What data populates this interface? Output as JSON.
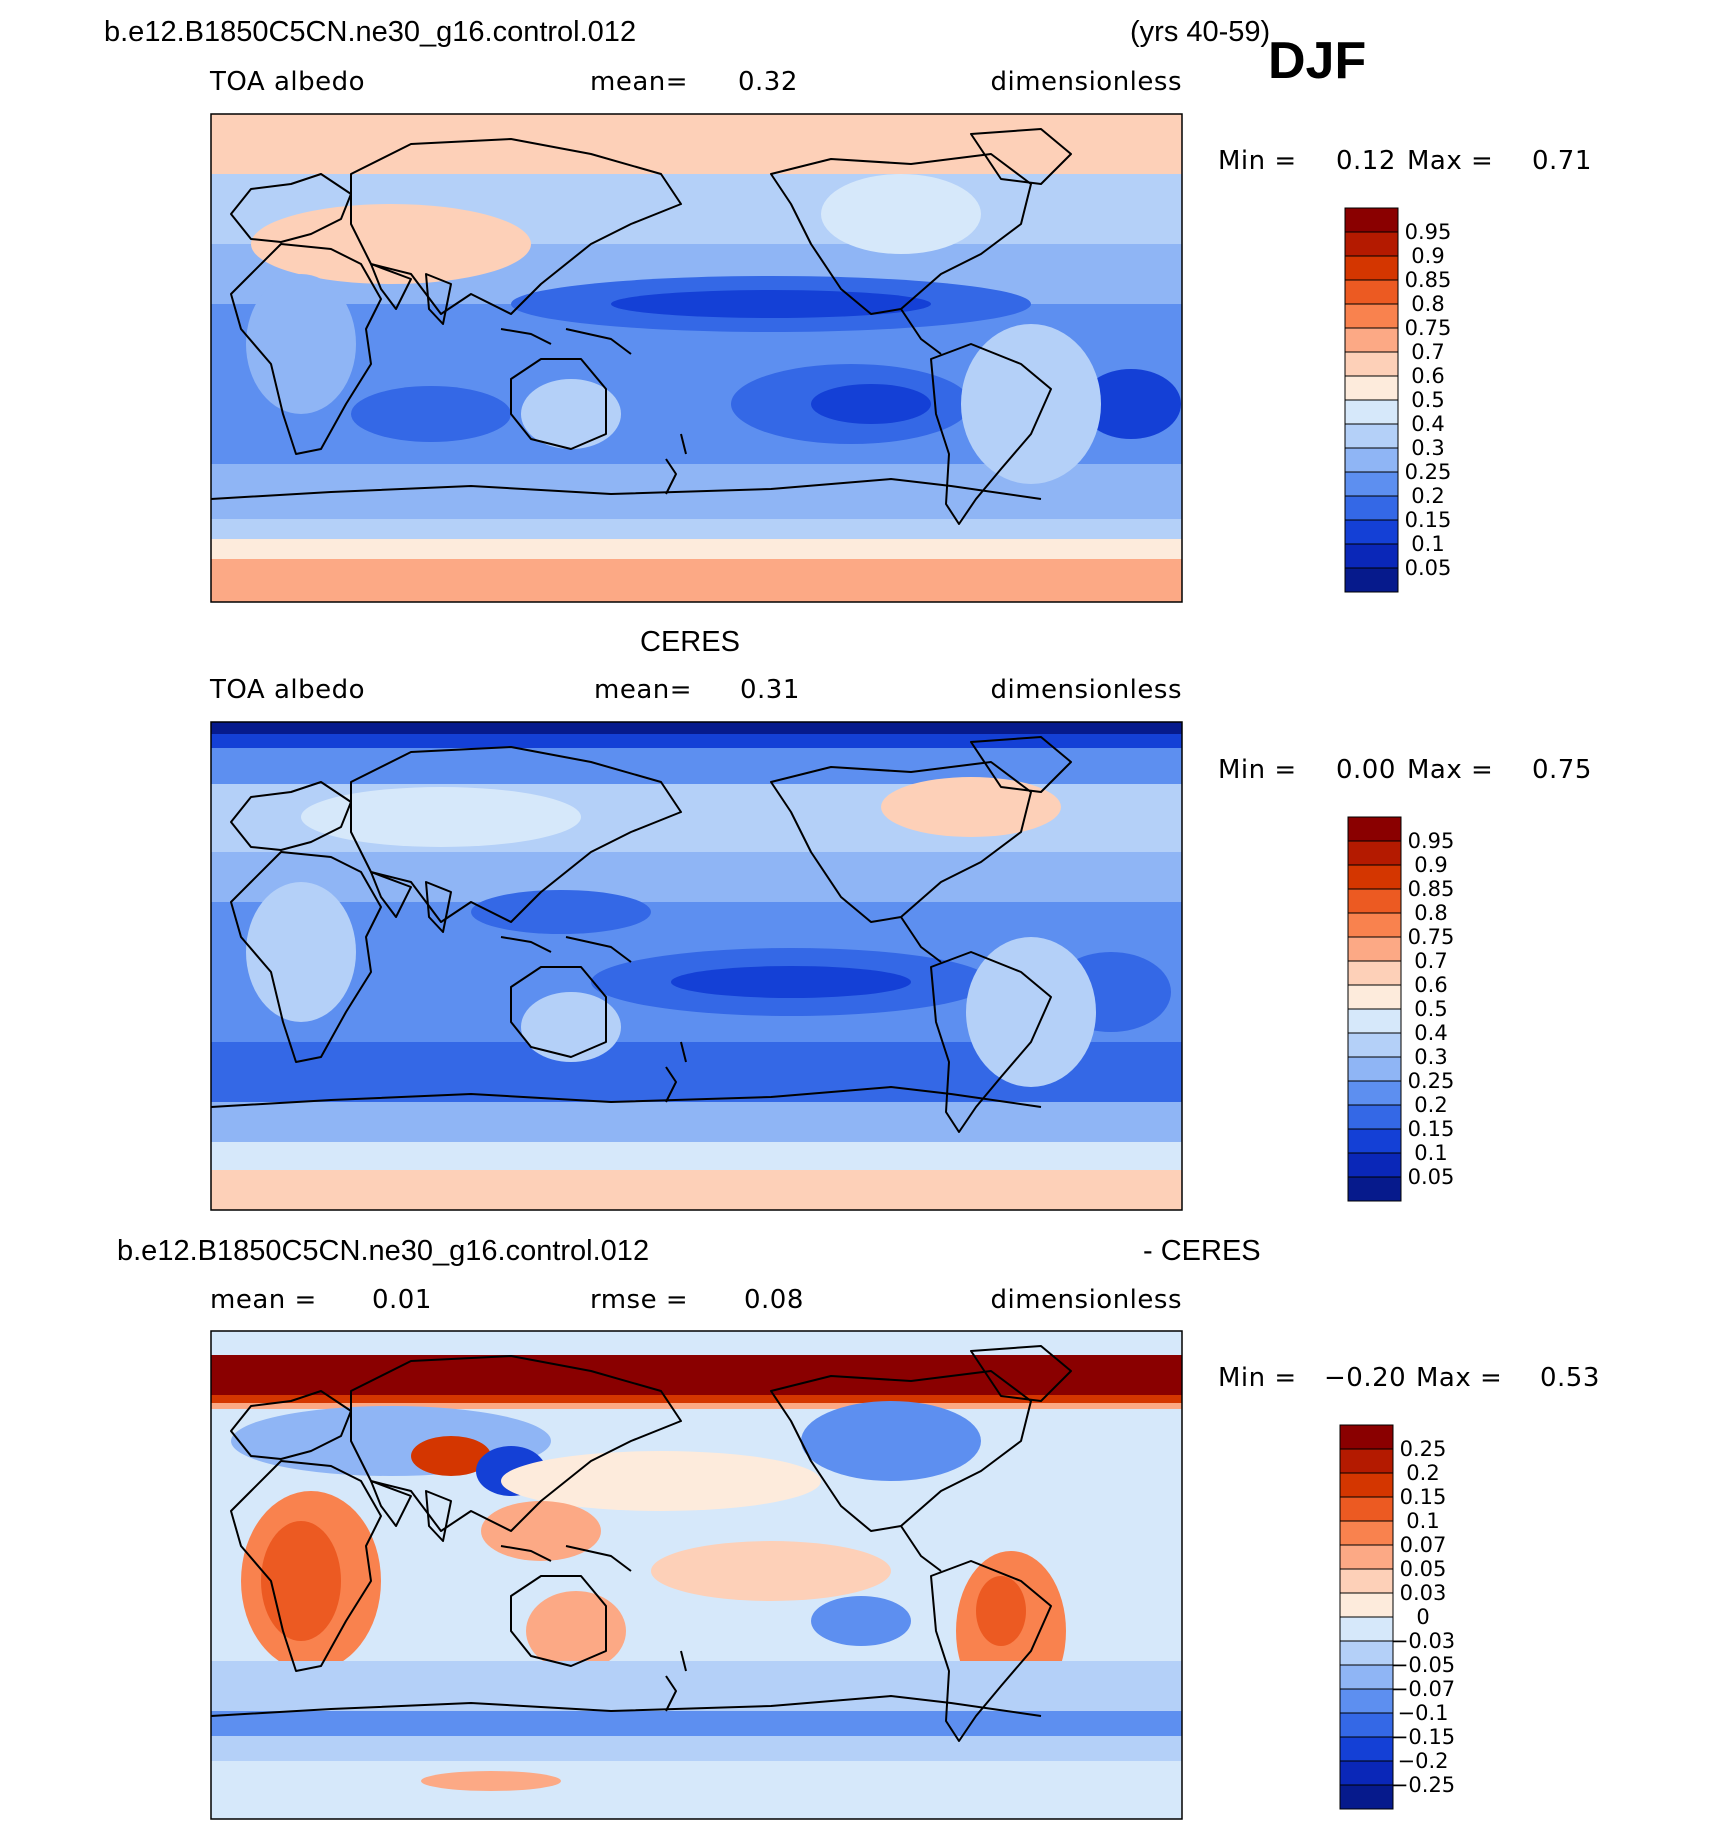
{
  "season": "DJF",
  "panels": [
    {
      "id": "model",
      "title": "b.e12.B1850C5CN.ne30_g16.control.012",
      "title_right": "(yrs 40-59)",
      "left_label": "TOA  albedo",
      "mid_label": "mean=",
      "mid_value": "0.32",
      "units": "dimensionless",
      "min_label": "Min  =",
      "min_value": "0.12",
      "max_label": "Max  =",
      "max_value": "0.71",
      "colorbar": [
        "0.95",
        "0.9",
        "0.85",
        "0.8",
        "0.75",
        "0.7",
        "0.6",
        "0.5",
        "0.4",
        "0.3",
        "0.25",
        "0.2",
        "0.15",
        "0.1",
        "0.05"
      ]
    },
    {
      "id": "obs",
      "title": "CERES",
      "left_label": "TOA  albedo",
      "mid_label": "mean=",
      "mid_value": "0.31",
      "units": "dimensionless",
      "min_label": "Min  =",
      "min_value": "0.00",
      "max_label": "Max  =",
      "max_value": "0.75",
      "colorbar": [
        "0.95",
        "0.9",
        "0.85",
        "0.8",
        "0.75",
        "0.7",
        "0.6",
        "0.5",
        "0.4",
        "0.3",
        "0.25",
        "0.2",
        "0.15",
        "0.1",
        "0.05"
      ]
    },
    {
      "id": "diff",
      "title": "b.e12.B1850C5CN.ne30_g16.control.012",
      "title_right": "- CERES",
      "left_label": "mean  =",
      "left_value": "0.01",
      "mid_label": "rmse  =",
      "mid_value": "0.08",
      "units": "dimensionless",
      "min_label": "Min  =",
      "min_value": "−0.20",
      "max_label": "Max  =",
      "max_value": "0.53",
      "colorbar": [
        "0.25",
        "0.2",
        "0.15",
        "0.1",
        "0.07",
        "0.05",
        "0.03",
        "0",
        "−0.03",
        "−0.05",
        "−0.07",
        "−0.1",
        "−0.15",
        "−0.2",
        "−0.25"
      ]
    }
  ],
  "colors": {
    "abs_scale": [
      "#8a0000",
      "#b41a00",
      "#d43600",
      "#ec5a22",
      "#f9824e",
      "#fca985",
      "#fdd0b8",
      "#fdebdc",
      "#d6e8fa",
      "#b4d0f8",
      "#8fb5f5",
      "#5d8ff0",
      "#3468e6",
      "#1440d6",
      "#0a27b8",
      "#061a8c"
    ],
    "diff_scale": [
      "#8a0000",
      "#b41a00",
      "#d43600",
      "#ec5a22",
      "#f9824e",
      "#fca985",
      "#fdd0b8",
      "#fdebdc",
      "#d6e8fa",
      "#b4d0f8",
      "#8fb5f5",
      "#5d8ff0",
      "#3468e6",
      "#1440d6",
      "#0a27b8",
      "#061a8c"
    ]
  }
}
